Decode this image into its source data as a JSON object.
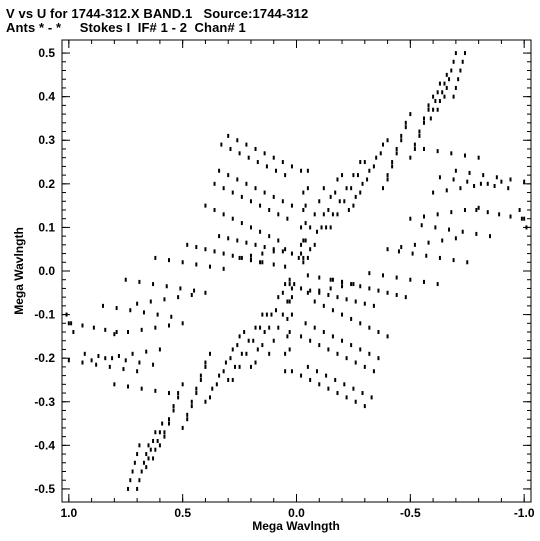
{
  "chart_data": {
    "type": "scatter",
    "title": "V vs U for 1744-312.X BAND.1   Source:1744-312",
    "subtitle": "Ants * - *     Stokes I  IF# 1 - 2  Chan# 1",
    "xlabel": "Mega Wavlngth",
    "ylabel": "Mega Wavlngth",
    "xlim": [
      1.03,
      -1.03
    ],
    "ylim": [
      -0.53,
      0.53
    ],
    "x_reversed": true,
    "xticks": [
      1.0,
      0.5,
      0.0,
      -0.5,
      -1.0
    ],
    "xtick_labels": [
      "1.0",
      "0.5",
      "0.0",
      "-0.5",
      "-1.0"
    ],
    "yticks": [
      0.5,
      0.4,
      0.3,
      0.2,
      0.1,
      0.0,
      -0.1,
      -0.2,
      -0.3,
      -0.4,
      -0.5
    ],
    "ytick_labels": [
      "0.5",
      "0.4",
      "0.3",
      "0.2",
      "0.1",
      "0.0",
      "-0.1",
      "-0.2",
      "-0.3",
      "-0.4",
      "-0.5"
    ],
    "grid": false,
    "point_color": "#000000",
    "series": [
      {
        "values": [
          [
            -0.74,
            0.5
          ],
          [
            -0.73,
            0.48
          ],
          [
            -0.72,
            0.46
          ],
          [
            -0.71,
            0.44
          ],
          [
            -0.7,
            0.42
          ],
          [
            -0.69,
            0.4
          ],
          [
            -0.66,
            0.45
          ],
          [
            -0.65,
            0.43
          ],
          [
            -0.64,
            0.41
          ],
          [
            -0.63,
            0.39
          ],
          [
            -0.62,
            0.37
          ],
          [
            -0.6,
            0.4
          ],
          [
            -0.58,
            0.37
          ],
          [
            -0.56,
            0.34
          ],
          [
            -0.54,
            0.31
          ],
          [
            -0.52,
            0.28
          ],
          [
            -0.5,
            0.36
          ],
          [
            -0.48,
            0.33
          ],
          [
            -0.46,
            0.3
          ],
          [
            -0.44,
            0.27
          ],
          [
            -0.42,
            0.24
          ],
          [
            -0.4,
            0.21
          ],
          [
            -0.4,
            0.3
          ],
          [
            -0.37,
            0.27
          ],
          [
            -0.34,
            0.24
          ],
          [
            -0.31,
            0.21
          ],
          [
            -0.28,
            0.18
          ],
          [
            -0.25,
            0.15
          ],
          [
            -0.3,
            0.25
          ],
          [
            -0.27,
            0.22
          ],
          [
            -0.24,
            0.19
          ],
          [
            -0.21,
            0.16
          ],
          [
            -0.18,
            0.13
          ],
          [
            -0.15,
            0.1
          ],
          [
            -0.2,
            0.22
          ],
          [
            -0.17,
            0.18
          ],
          [
            -0.14,
            0.14
          ],
          [
            -0.11,
            0.1
          ],
          [
            -0.08,
            0.06
          ],
          [
            -0.05,
            0.03
          ],
          [
            -0.12,
            0.19
          ],
          [
            -0.1,
            0.16
          ],
          [
            -0.08,
            0.13
          ],
          [
            -0.06,
            0.1
          ],
          [
            -0.04,
            0.07
          ],
          [
            -0.02,
            0.04
          ],
          [
            -0.03,
            0.18
          ],
          [
            -0.03,
            0.14
          ],
          [
            -0.02,
            0.1
          ],
          [
            -0.02,
            0.06
          ],
          [
            -0.01,
            0.03
          ],
          [
            0.03,
            -0.03
          ],
          [
            0.03,
            -0.07
          ],
          [
            0.04,
            -0.11
          ],
          [
            0.04,
            -0.15
          ],
          [
            0.05,
            -0.19
          ],
          [
            0.05,
            -0.23
          ],
          [
            0.7,
            -0.5
          ],
          [
            0.69,
            -0.48
          ],
          [
            0.68,
            -0.46
          ],
          [
            0.67,
            -0.44
          ],
          [
            0.66,
            -0.42
          ],
          [
            0.65,
            -0.4
          ],
          [
            0.63,
            -0.43
          ],
          [
            0.62,
            -0.41
          ],
          [
            0.61,
            -0.39
          ],
          [
            0.6,
            -0.37
          ],
          [
            0.59,
            -0.35
          ],
          [
            0.58,
            -0.38
          ],
          [
            0.56,
            -0.35
          ],
          [
            0.54,
            -0.32
          ],
          [
            0.52,
            -0.29
          ],
          [
            0.5,
            -0.26
          ],
          [
            0.48,
            -0.34
          ],
          [
            0.46,
            -0.31
          ],
          [
            0.44,
            -0.28
          ],
          [
            0.42,
            -0.25
          ],
          [
            0.4,
            -0.22
          ],
          [
            0.38,
            -0.19
          ],
          [
            0.38,
            -0.29
          ],
          [
            0.35,
            -0.26
          ],
          [
            0.32,
            -0.23
          ],
          [
            0.29,
            -0.2
          ],
          [
            0.26,
            -0.17
          ],
          [
            0.23,
            -0.14
          ],
          [
            0.28,
            -0.25
          ],
          [
            0.25,
            -0.22
          ],
          [
            0.22,
            -0.19
          ],
          [
            0.19,
            -0.16
          ],
          [
            0.16,
            -0.13
          ],
          [
            0.13,
            -0.1
          ],
          [
            0.18,
            -0.21
          ],
          [
            0.15,
            -0.17
          ],
          [
            0.12,
            -0.13
          ],
          [
            0.09,
            -0.09
          ],
          [
            0.06,
            -0.05
          ],
          [
            0.03,
            -0.02
          ],
          [
            0.3,
            0.31
          ],
          [
            0.26,
            0.3
          ],
          [
            0.22,
            0.29
          ],
          [
            0.18,
            0.28
          ],
          [
            0.14,
            0.27
          ],
          [
            0.1,
            0.26
          ],
          [
            0.06,
            0.25
          ],
          [
            0.02,
            0.24
          ],
          [
            -0.02,
            0.23
          ],
          [
            0.34,
            0.23
          ],
          [
            0.3,
            0.22
          ],
          [
            0.26,
            0.21
          ],
          [
            0.22,
            0.2
          ],
          [
            0.18,
            0.19
          ],
          [
            0.14,
            0.18
          ],
          [
            0.1,
            0.17
          ],
          [
            0.06,
            0.16
          ],
          [
            0.02,
            0.15
          ],
          [
            0.4,
            0.15
          ],
          [
            0.36,
            0.14
          ],
          [
            0.32,
            0.13
          ],
          [
            0.28,
            0.12
          ],
          [
            0.24,
            0.11
          ],
          [
            0.2,
            0.1
          ],
          [
            0.16,
            0.09
          ],
          [
            0.12,
            0.08
          ],
          [
            0.08,
            0.07
          ],
          [
            0.48,
            0.06
          ],
          [
            0.44,
            0.055
          ],
          [
            0.4,
            0.05
          ],
          [
            0.36,
            0.045
          ],
          [
            0.32,
            0.04
          ],
          [
            0.28,
            0.035
          ],
          [
            0.24,
            0.03
          ],
          [
            0.2,
            0.025
          ],
          [
            0.16,
            0.02
          ],
          [
            0.62,
            0.03
          ],
          [
            0.56,
            0.025
          ],
          [
            0.5,
            0.02
          ],
          [
            0.44,
            0.015
          ],
          [
            0.38,
            0.01
          ],
          [
            0.32,
            0.005
          ],
          [
            0.75,
            -0.02
          ],
          [
            0.69,
            -0.025
          ],
          [
            0.63,
            -0.03
          ],
          [
            0.57,
            -0.035
          ],
          [
            0.51,
            -0.04
          ],
          [
            0.45,
            -0.045
          ],
          [
            0.85,
            -0.08
          ],
          [
            0.79,
            -0.085
          ],
          [
            0.73,
            -0.09
          ],
          [
            0.67,
            -0.095
          ],
          [
            0.61,
            -0.1
          ],
          [
            0.55,
            -0.105
          ],
          [
            0.99,
            -0.12
          ],
          [
            0.94,
            -0.125
          ],
          [
            0.89,
            -0.13
          ],
          [
            0.84,
            -0.135
          ],
          [
            0.79,
            -0.14
          ],
          [
            0.93,
            -0.19
          ],
          [
            0.87,
            -0.195
          ],
          [
            0.81,
            -0.2
          ],
          [
            0.75,
            -0.205
          ],
          [
            0.69,
            -0.21
          ],
          [
            0.63,
            -0.215
          ],
          [
            0.8,
            -0.26
          ],
          [
            0.74,
            -0.265
          ],
          [
            0.68,
            -0.27
          ],
          [
            0.62,
            -0.275
          ],
          [
            0.56,
            -0.28
          ],
          [
            -0.05,
            -0.22
          ],
          [
            -0.09,
            -0.23
          ],
          [
            -0.13,
            -0.24
          ],
          [
            -0.17,
            -0.25
          ],
          [
            -0.21,
            -0.26
          ],
          [
            -0.25,
            -0.27
          ],
          [
            -0.29,
            -0.28
          ],
          [
            -0.33,
            -0.29
          ],
          [
            -0.04,
            -0.12
          ],
          [
            -0.08,
            -0.13
          ],
          [
            -0.12,
            -0.14
          ],
          [
            -0.16,
            -0.15
          ],
          [
            -0.2,
            -0.16
          ],
          [
            -0.24,
            -0.17
          ],
          [
            -0.28,
            -0.18
          ],
          [
            -0.32,
            -0.19
          ],
          [
            -0.36,
            -0.2
          ],
          [
            -0.02,
            -0.04
          ],
          [
            -0.06,
            -0.045
          ],
          [
            -0.1,
            -0.05
          ],
          [
            -0.14,
            -0.055
          ],
          [
            -0.18,
            -0.06
          ],
          [
            -0.22,
            -0.065
          ],
          [
            -0.26,
            -0.07
          ],
          [
            -0.3,
            -0.075
          ],
          [
            -0.34,
            -0.08
          ],
          [
            -0.4,
            0.05
          ],
          [
            -0.46,
            0.055
          ],
          [
            -0.52,
            0.06
          ],
          [
            -0.58,
            0.065
          ],
          [
            -0.64,
            0.07
          ],
          [
            -0.7,
            0.075
          ],
          [
            -0.5,
            0.12
          ],
          [
            -0.56,
            0.125
          ],
          [
            -0.62,
            0.13
          ],
          [
            -0.68,
            0.135
          ],
          [
            -0.74,
            0.14
          ],
          [
            -0.8,
            0.145
          ],
          [
            -0.6,
            0.18
          ],
          [
            -0.66,
            0.185
          ],
          [
            -0.72,
            0.19
          ],
          [
            -0.78,
            0.195
          ],
          [
            -0.84,
            0.2
          ],
          [
            -0.9,
            0.205
          ],
          [
            -0.7,
            0.23
          ],
          [
            -0.76,
            0.225
          ],
          [
            -0.82,
            0.22
          ],
          [
            -0.88,
            0.215
          ],
          [
            -0.94,
            0.21
          ],
          [
            -1.0,
            0.205
          ],
          [
            -0.98,
            0.14
          ],
          [
            -1.0,
            0.12
          ],
          [
            -1.01,
            0.1
          ],
          [
            0.05,
            0.05
          ],
          [
            0.1,
            0.045
          ],
          [
            0.15,
            0.04
          ],
          [
            0.2,
            0.035
          ],
          [
            -0.05,
            -0.01
          ],
          [
            -0.1,
            -0.015
          ],
          [
            -0.15,
            -0.02
          ],
          [
            -0.2,
            -0.025
          ],
          [
            -0.25,
            -0.03
          ]
        ]
      }
    ]
  }
}
